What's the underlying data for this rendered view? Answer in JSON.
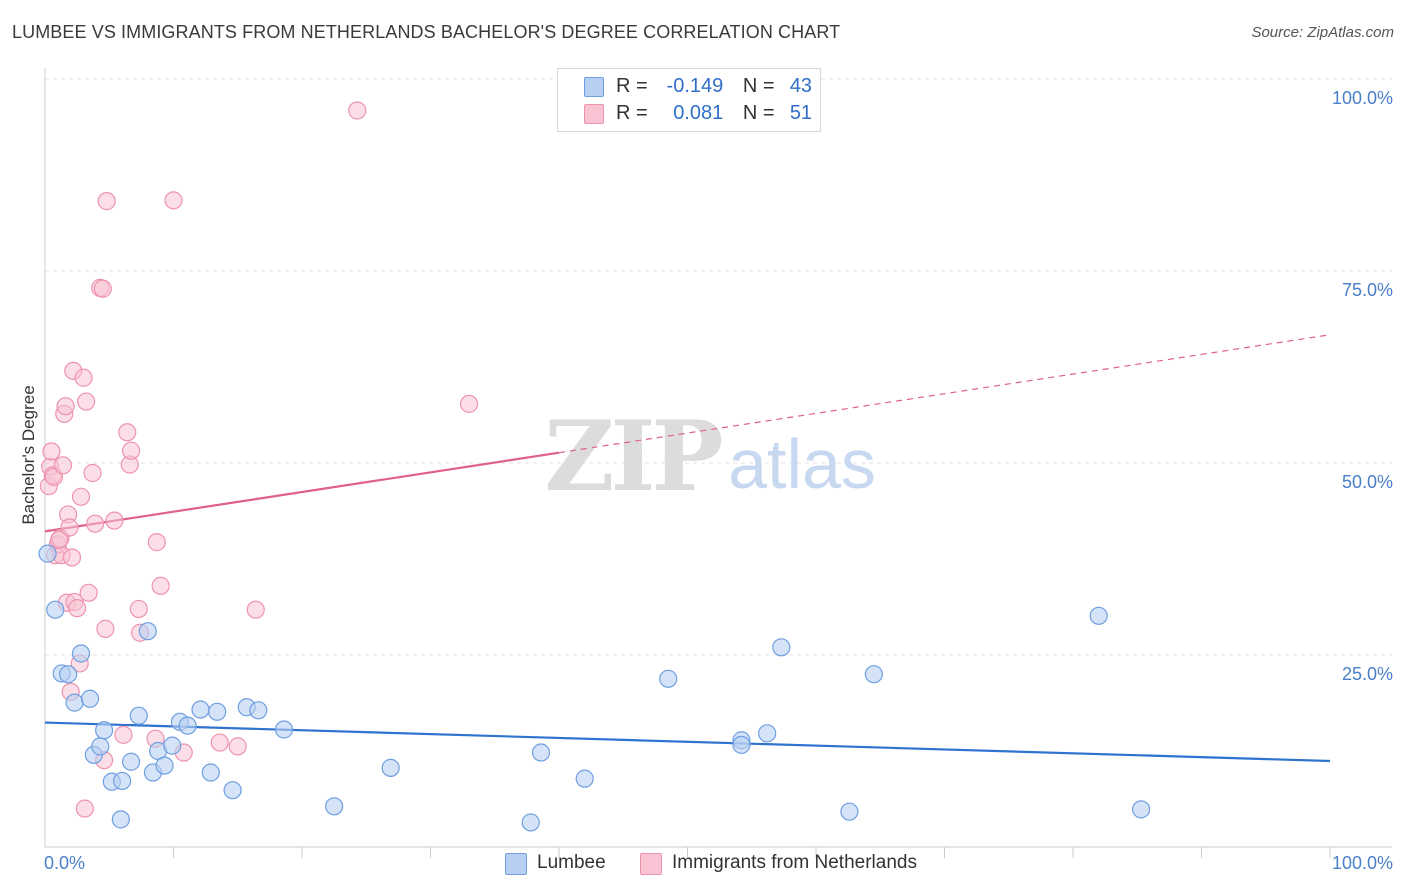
{
  "header": {
    "title": "LUMBEE VS IMMIGRANTS FROM NETHERLANDS BACHELOR'S DEGREE CORRELATION CHART",
    "source": "Source: ZipAtlas.com"
  },
  "watermark": {
    "zip": "ZIP",
    "atlas": "atlas"
  },
  "legend": {
    "rows": [
      {
        "r_label": "R =",
        "r_value": "-0.149",
        "n_label": "N =",
        "n_value": "43"
      },
      {
        "r_label": "R =",
        "r_value": "0.081",
        "n_label": "N =",
        "n_value": "51"
      }
    ]
  },
  "bottom_legend": {
    "series_a": "Lumbee",
    "series_b": "Immigrants from Netherlands"
  },
  "chart_data": {
    "type": "scatter",
    "title": "LUMBEE VS IMMIGRANTS FROM NETHERLANDS BACHELOR'S DEGREE CORRELATION CHART",
    "xlabel": "",
    "ylabel": "Bachelor's Degree",
    "xlim": [
      0,
      100
    ],
    "ylim": [
      0,
      100
    ],
    "x_tick_labels": [
      "0.0%",
      "100.0%"
    ],
    "y_tick_labels": [
      "100.0%",
      "75.0%",
      "50.0%",
      "25.0%"
    ],
    "y_ticks": [
      100,
      75,
      50,
      25
    ],
    "grid": true,
    "legend_position": "top-center",
    "colors": {
      "lumbee_fill": "#b7d0f2",
      "lumbee_stroke": "#6f9fe0",
      "lumbee_line": "#2f73d0",
      "nl_fill": "#f8c3d3",
      "nl_stroke": "#ee93ae",
      "nl_line": "#e0608c",
      "accent_text": "#4a7fc9"
    },
    "series": [
      {
        "name": "Lumbee",
        "trend": {
          "x": [
            0,
            100
          ],
          "y": [
            16.2,
            11.2
          ],
          "dashed_from": null
        },
        "points": [
          [
            0.2,
            38.2
          ],
          [
            0.8,
            30.9
          ],
          [
            1.3,
            22.6
          ],
          [
            1.8,
            22.5
          ],
          [
            2.3,
            18.8
          ],
          [
            2.8,
            25.2
          ],
          [
            3.5,
            19.3
          ],
          [
            3.8,
            12.0
          ],
          [
            4.3,
            13.1
          ],
          [
            4.6,
            15.2
          ],
          [
            5.2,
            8.5
          ],
          [
            6.0,
            8.6
          ],
          [
            5.9,
            3.6
          ],
          [
            6.7,
            11.1
          ],
          [
            7.3,
            17.1
          ],
          [
            8.0,
            28.1
          ],
          [
            8.4,
            9.7
          ],
          [
            8.8,
            12.5
          ],
          [
            9.3,
            10.6
          ],
          [
            9.9,
            13.2
          ],
          [
            10.5,
            16.3
          ],
          [
            11.1,
            15.8
          ],
          [
            12.1,
            17.9
          ],
          [
            12.9,
            9.7
          ],
          [
            13.4,
            17.6
          ],
          [
            14.6,
            7.4
          ],
          [
            15.7,
            18.2
          ],
          [
            16.6,
            17.8
          ],
          [
            18.6,
            15.3
          ],
          [
            22.5,
            5.3
          ],
          [
            26.9,
            10.3
          ],
          [
            37.8,
            3.2
          ],
          [
            38.6,
            12.3
          ],
          [
            42.0,
            8.9
          ],
          [
            48.5,
            21.9
          ],
          [
            54.2,
            13.9
          ],
          [
            54.2,
            13.3
          ],
          [
            56.2,
            14.8
          ],
          [
            62.6,
            4.6
          ],
          [
            64.5,
            22.5
          ],
          [
            82.0,
            30.1
          ],
          [
            85.3,
            4.9
          ],
          [
            57.3,
            26.0
          ]
        ]
      },
      {
        "name": "Immigrants from Netherlands",
        "trend": {
          "x": [
            0,
            100
          ],
          "y": [
            41.1,
            66.7
          ],
          "dashed_from": 40
        },
        "points": [
          [
            0.3,
            47.0
          ],
          [
            0.4,
            49.5
          ],
          [
            0.5,
            51.5
          ],
          [
            0.6,
            48.4
          ],
          [
            0.7,
            48.2
          ],
          [
            0.8,
            38.0
          ],
          [
            1.0,
            39.4
          ],
          [
            1.2,
            40.2
          ],
          [
            1.3,
            38.0
          ],
          [
            1.4,
            49.7
          ],
          [
            1.5,
            56.4
          ],
          [
            1.6,
            57.4
          ],
          [
            1.7,
            31.8
          ],
          [
            1.8,
            43.3
          ],
          [
            1.9,
            41.6
          ],
          [
            2.0,
            20.2
          ],
          [
            2.1,
            37.7
          ],
          [
            2.2,
            62.0
          ],
          [
            2.3,
            31.9
          ],
          [
            2.5,
            31.1
          ],
          [
            2.7,
            23.9
          ],
          [
            2.8,
            45.6
          ],
          [
            3.0,
            61.1
          ],
          [
            3.2,
            58.0
          ],
          [
            3.4,
            33.1
          ],
          [
            3.7,
            48.7
          ],
          [
            3.9,
            42.1
          ],
          [
            4.3,
            72.8
          ],
          [
            4.5,
            72.7
          ],
          [
            4.6,
            11.3
          ],
          [
            4.7,
            28.4
          ],
          [
            4.8,
            84.1
          ],
          [
            5.4,
            42.5
          ],
          [
            6.1,
            14.6
          ],
          [
            6.4,
            54.0
          ],
          [
            6.6,
            49.8
          ],
          [
            6.7,
            51.6
          ],
          [
            7.3,
            31.0
          ],
          [
            7.4,
            27.9
          ],
          [
            8.6,
            14.1
          ],
          [
            8.7,
            39.7
          ],
          [
            9.0,
            34.0
          ],
          [
            10.0,
            84.2
          ],
          [
            10.8,
            12.3
          ],
          [
            13.6,
            13.6
          ],
          [
            15.0,
            13.1
          ],
          [
            16.4,
            30.9
          ],
          [
            24.3,
            95.9
          ],
          [
            33.0,
            57.7
          ],
          [
            3.1,
            5.0
          ],
          [
            1.1,
            40.0
          ]
        ]
      }
    ]
  }
}
